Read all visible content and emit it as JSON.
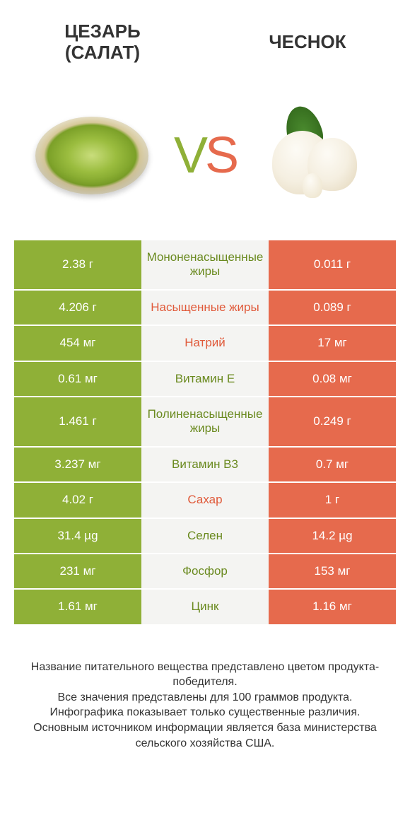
{
  "colors": {
    "green": "#8fb037",
    "orange": "#e66a4d",
    "mid_bg": "#f4f4f2",
    "green_text": "#6a8a1f",
    "orange_text": "#e05a3a",
    "body_bg": "#ffffff"
  },
  "header": {
    "left_title_line1": "ЦЕЗАРЬ",
    "left_title_line2": "(САЛАТ)",
    "right_title": "ЧЕСНОК"
  },
  "versus": {
    "v": "V",
    "s": "S",
    "v_color": "#8fb037",
    "s_color": "#e66a4d",
    "left_food": "salad-caesar",
    "right_food": "garlic"
  },
  "table": {
    "rows": [
      {
        "left": "2.38 г",
        "mid": "Мононенасыщенные жиры",
        "right": "0.011 г",
        "winner": "green"
      },
      {
        "left": "4.206 г",
        "mid": "Насыщенные жиры",
        "right": "0.089 г",
        "winner": "orange"
      },
      {
        "left": "454 мг",
        "mid": "Натрий",
        "right": "17 мг",
        "winner": "orange"
      },
      {
        "left": "0.61 мг",
        "mid": "Витамин E",
        "right": "0.08 мг",
        "winner": "green"
      },
      {
        "left": "1.461 г",
        "mid": "Полиненасыщенные жиры",
        "right": "0.249 г",
        "winner": "green"
      },
      {
        "left": "3.237 мг",
        "mid": "Витамин B3",
        "right": "0.7 мг",
        "winner": "green"
      },
      {
        "left": "4.02 г",
        "mid": "Сахар",
        "right": "1 г",
        "winner": "orange"
      },
      {
        "left": "31.4 µg",
        "mid": "Селен",
        "right": "14.2 µg",
        "winner": "green"
      },
      {
        "left": "231 мг",
        "mid": "Фосфор",
        "right": "153 мг",
        "winner": "green"
      },
      {
        "left": "1.61 мг",
        "mid": "Цинк",
        "right": "1.16 мг",
        "winner": "green"
      }
    ]
  },
  "footer": {
    "line1": "Название питательного вещества представлено цветом продукта-победителя.",
    "line2": "Все значения представлены для 100 граммов продукта.",
    "line3": "Инфографика показывает только существенные различия.",
    "line4": "Основным источником информации является база министерства сельского хозяйства США."
  },
  "typography": {
    "title_fontsize": 26,
    "vs_fontsize": 72,
    "cell_fontsize": 17,
    "footer_fontsize": 16
  }
}
